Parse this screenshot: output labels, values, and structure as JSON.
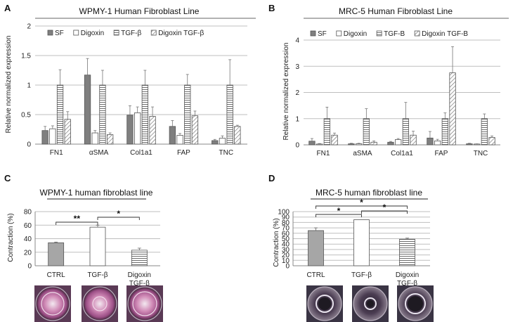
{
  "panel_labels": [
    "A",
    "B",
    "C",
    "D"
  ],
  "colors": {
    "sf": "#7f7f7f",
    "digoxin": "#ffffff",
    "tgf": "#d0d0d0",
    "digoxin_tgf": "#ffffff",
    "ctrl_bar": "#a6a6a6",
    "edge": "#555555",
    "grid": "#bfbfbf",
    "dish_bg": "#3a2a38",
    "dish_pink": "#c27aa8",
    "dish_light": "#e9e4ee"
  },
  "chart_data": [
    {
      "type": "bar",
      "title": "WPMY-1 Human Fibroblast Line",
      "ylabel": "Relative normalized expression",
      "ylim": [
        0,
        2
      ],
      "yticks": [
        "0",
        "0.5",
        "1",
        "1.5",
        "2"
      ],
      "grid": true,
      "legend": "top",
      "categories": [
        "FN1",
        "αSMA",
        "Col1a1",
        "FAP",
        "TNC"
      ],
      "series": [
        {
          "name": "SF",
          "values": [
            0.23,
            1.17,
            0.49,
            0.3,
            0.06
          ],
          "errors": [
            0.07,
            0.28,
            0.16,
            0.1,
            0.02
          ]
        },
        {
          "name": "Digoxin",
          "values": [
            0.26,
            0.19,
            0.53,
            0.15,
            0.1
          ],
          "errors": [
            0.05,
            0.04,
            0.1,
            0.03,
            0.04
          ]
        },
        {
          "name": "TGF-β",
          "values": [
            1.0,
            1.0,
            1.0,
            1.0,
            1.0
          ],
          "errors": [
            0.26,
            0.25,
            0.25,
            0.18,
            0.43
          ]
        },
        {
          "name": "Digoxin TGF-β",
          "values": [
            0.42,
            0.16,
            0.47,
            0.48,
            0.3
          ],
          "errors": [
            0.13,
            0.03,
            0.16,
            0.08,
            0.02
          ]
        }
      ]
    },
    {
      "type": "bar",
      "title": "MRC-5 Human Fibroblast Line",
      "ylabel": "Relative normalized expression",
      "ylim": [
        0,
        4
      ],
      "yticks": [
        "0",
        "1",
        "2",
        "3",
        "4"
      ],
      "grid": true,
      "legend": "top",
      "categories": [
        "FN1",
        "aSMA",
        "Col1a1",
        "FAP",
        "TNC"
      ],
      "series": [
        {
          "name": "SF",
          "values": [
            0.14,
            0.04,
            0.1,
            0.26,
            0.04
          ],
          "errors": [
            0.1,
            0.02,
            0.03,
            0.25,
            0.02
          ]
        },
        {
          "name": "Digoxin",
          "values": [
            0.03,
            0.04,
            0.2,
            0.15,
            0.03
          ],
          "errors": [
            0.02,
            0.02,
            0.04,
            0.06,
            0.01
          ]
        },
        {
          "name": "TGF-B",
          "values": [
            1.0,
            1.0,
            1.0,
            1.0,
            1.0
          ],
          "errors": [
            0.44,
            0.38,
            0.62,
            0.22,
            0.18
          ]
        },
        {
          "name": "Digoxin TGF-B",
          "values": [
            0.37,
            0.1,
            0.37,
            2.75,
            0.28
          ],
          "errors": [
            0.08,
            0.05,
            0.15,
            1.0,
            0.06
          ]
        }
      ]
    },
    {
      "type": "bar",
      "title": "WPMY-1 human fibroblast line",
      "ylabel": "Contraction (%)",
      "ylim": [
        0,
        80
      ],
      "yticks": [
        "0",
        "20",
        "40",
        "60",
        "80"
      ],
      "grid": true,
      "categories": [
        "CTRL",
        "TGF-β",
        "Digoxin|TGF-β"
      ],
      "values": [
        34,
        57,
        23
      ],
      "errors": [
        1,
        3,
        3
      ],
      "significance": [
        {
          "from": 0,
          "to": 1,
          "label": "**"
        },
        {
          "from": 1,
          "to": 2,
          "label": "*"
        }
      ]
    },
    {
      "type": "bar",
      "title": "MRC-5 human fibroblast line",
      "ylabel": "Contraction (%)",
      "ylim": [
        0,
        100
      ],
      "yticks": [
        "0",
        "10",
        "20",
        "30",
        "40",
        "50",
        "60",
        "70",
        "80",
        "90",
        "100"
      ],
      "grid": true,
      "categories": [
        "CTRL",
        "TGF-β",
        "Digoxin|TGF-β"
      ],
      "values": [
        65,
        85,
        49
      ],
      "errors": [
        5,
        0,
        2
      ],
      "significance": [
        {
          "from": 0,
          "to": 1,
          "label": "*"
        },
        {
          "from": 0,
          "to": 2,
          "label": "*"
        },
        {
          "from": 1,
          "to": 2,
          "label": "*"
        }
      ]
    }
  ]
}
